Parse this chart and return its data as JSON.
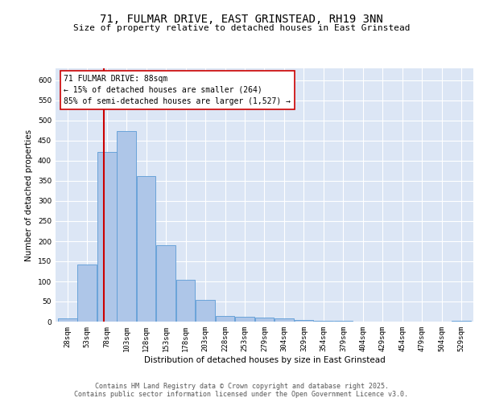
{
  "title_line1": "71, FULMAR DRIVE, EAST GRINSTEAD, RH19 3NN",
  "title_line2": "Size of property relative to detached houses in East Grinstead",
  "xlabel": "Distribution of detached houses by size in East Grinstead",
  "ylabel": "Number of detached properties",
  "bar_labels": [
    "28sqm",
    "53sqm",
    "78sqm",
    "103sqm",
    "128sqm",
    "153sqm",
    "178sqm",
    "203sqm",
    "228sqm",
    "253sqm",
    "279sqm",
    "304sqm",
    "329sqm",
    "354sqm",
    "379sqm",
    "404sqm",
    "429sqm",
    "454sqm",
    "479sqm",
    "504sqm",
    "529sqm"
  ],
  "bar_values": [
    8,
    142,
    422,
    473,
    362,
    191,
    105,
    54,
    15,
    12,
    10,
    8,
    5,
    2,
    2,
    0,
    0,
    0,
    0,
    0,
    3
  ],
  "bar_color": "#aec6e8",
  "bar_edge_color": "#5b9bd5",
  "background_color": "#dce6f5",
  "grid_color": "#ffffff",
  "red_line_x": 1.87,
  "red_line_color": "#cc0000",
  "annotation_box_text": "71 FULMAR DRIVE: 88sqm\n← 15% of detached houses are smaller (264)\n85% of semi-detached houses are larger (1,527) →",
  "ylim": [
    0,
    630
  ],
  "yticks": [
    0,
    50,
    100,
    150,
    200,
    250,
    300,
    350,
    400,
    450,
    500,
    550,
    600
  ],
  "footer_text": "Contains HM Land Registry data © Crown copyright and database right 2025.\nContains public sector information licensed under the Open Government Licence v3.0.",
  "title_fontsize": 10,
  "subtitle_fontsize": 8,
  "axis_label_fontsize": 7.5,
  "tick_fontsize": 6.5,
  "annotation_fontsize": 7,
  "footer_fontsize": 6
}
